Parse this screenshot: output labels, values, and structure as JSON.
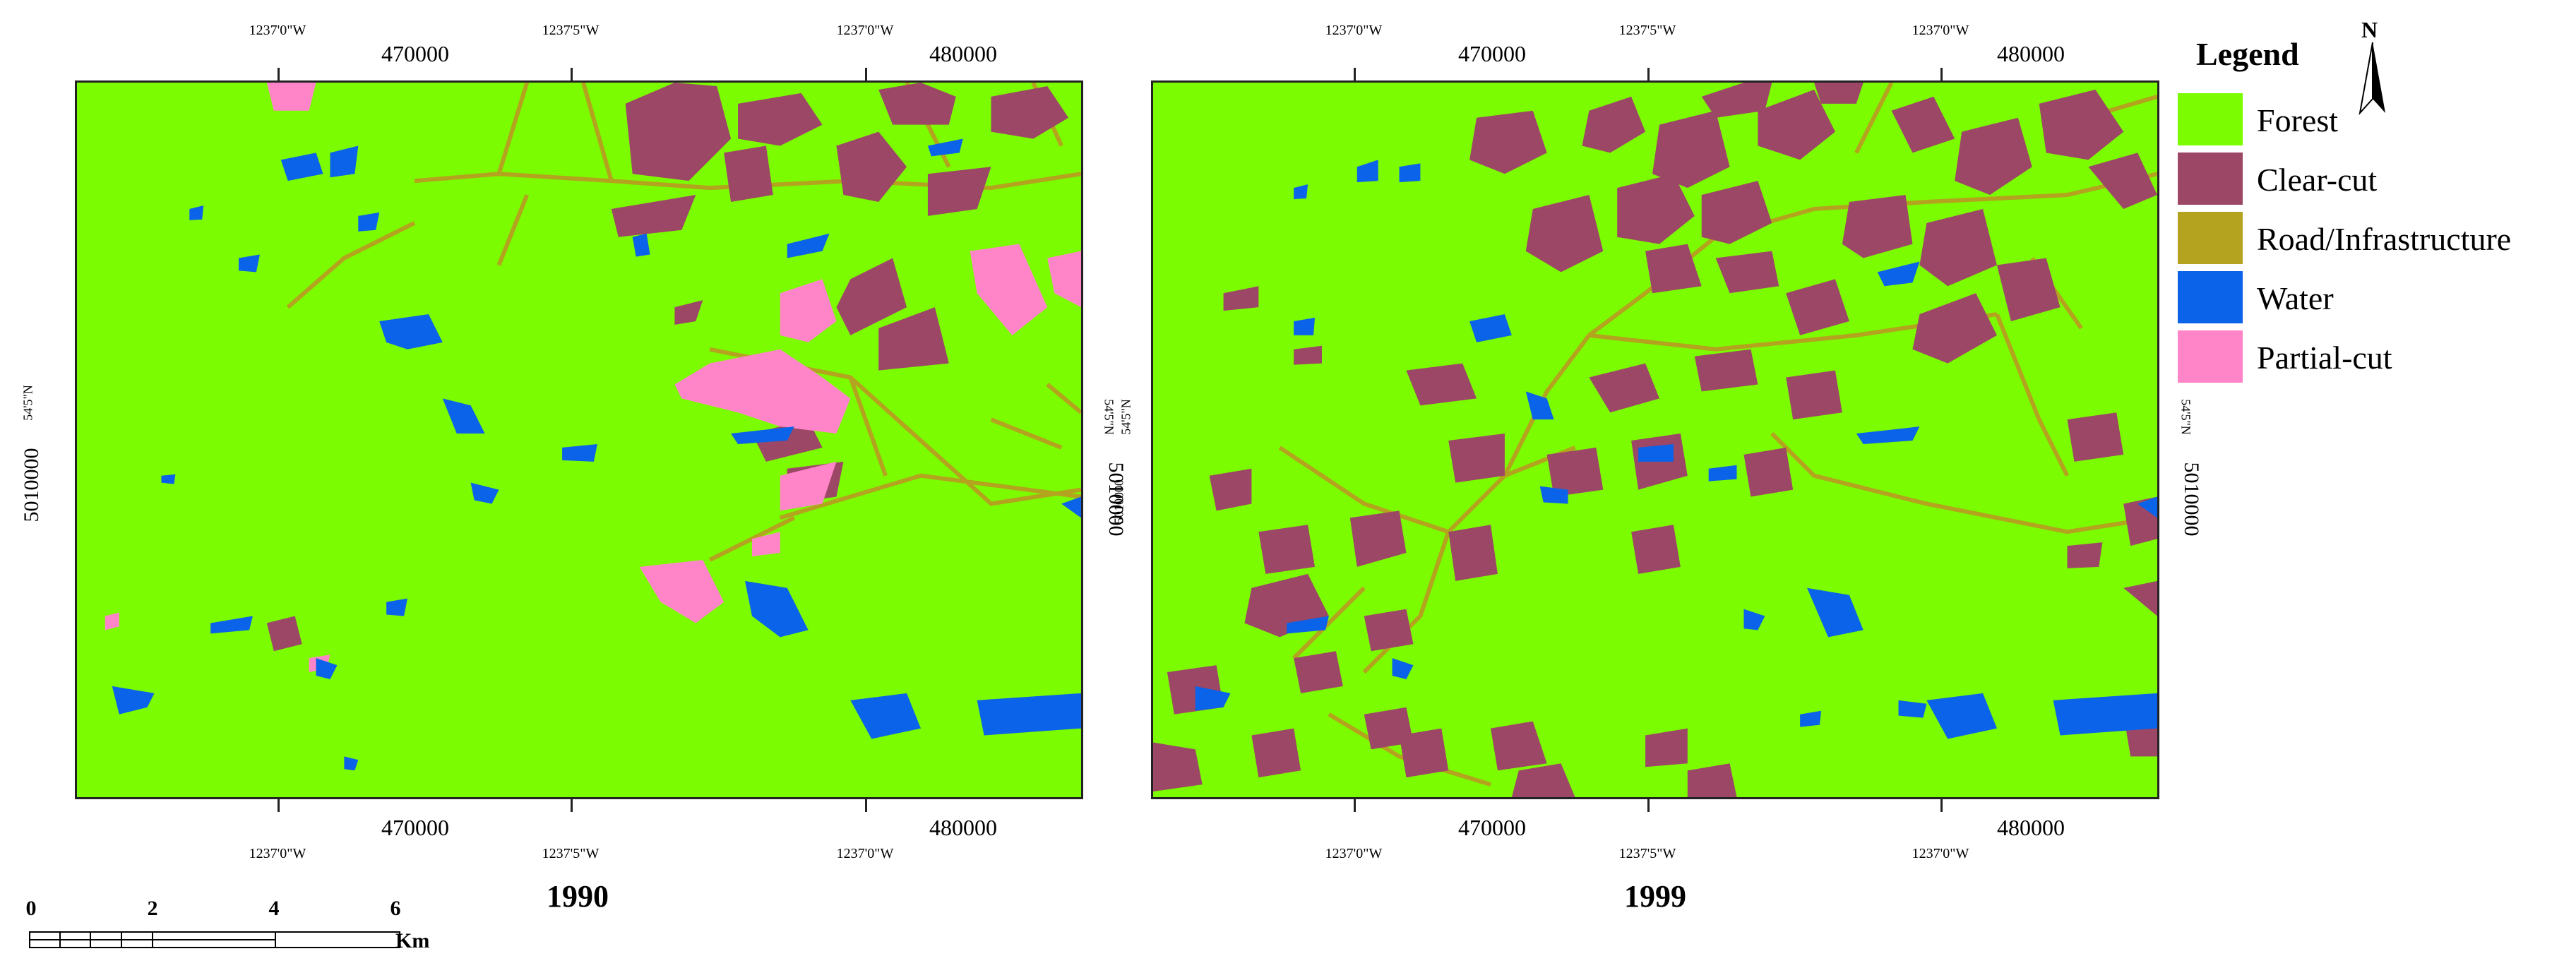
{
  "panels": [
    {
      "title": "1990",
      "top_ticks_small": [
        "1237'0\"W",
        "1237'5\"W",
        "1237'0\"W"
      ],
      "top_ticks_big": [
        "470000",
        "480000"
      ],
      "bottom_ticks_small": [
        "1237'0\"W",
        "1237'5\"W",
        "1237'0\"W"
      ],
      "bottom_ticks_big": [
        "470000",
        "480000"
      ],
      "left_labels": [
        "54'5\"N",
        "5010000"
      ],
      "right_labels": [
        "54'5\"N",
        "5010000"
      ]
    },
    {
      "title": "1999",
      "top_ticks_small": [
        "1237'0\"W",
        "1237'5\"W",
        "1237'0\"W"
      ],
      "top_ticks_big": [
        "470000",
        "480000"
      ],
      "bottom_ticks_small": [
        "1237'0\"W",
        "1237'5\"W",
        "1237'0\"W"
      ],
      "bottom_ticks_big": [
        "470000",
        "480000"
      ],
      "left_labels": [
        "54'5\"N",
        "5010000"
      ],
      "right_labels": [
        "54'5\"N",
        "5010000"
      ]
    }
  ],
  "legend": {
    "title": "Legend",
    "north_label": "N",
    "items": [
      {
        "label": "Forest",
        "color": "#7cfc00"
      },
      {
        "label": "Clear-cut",
        "color": "#9c4766"
      },
      {
        "label": "Road/Infrastructure",
        "color": "#b4a31e"
      },
      {
        "label": "Water",
        "color": "#0a63e8"
      },
      {
        "label": "Partial-cut",
        "color": "#ff85c8"
      }
    ]
  },
  "scale_bar": {
    "labels": [
      "0",
      "2",
      "4",
      "6"
    ],
    "unit": "Km"
  }
}
